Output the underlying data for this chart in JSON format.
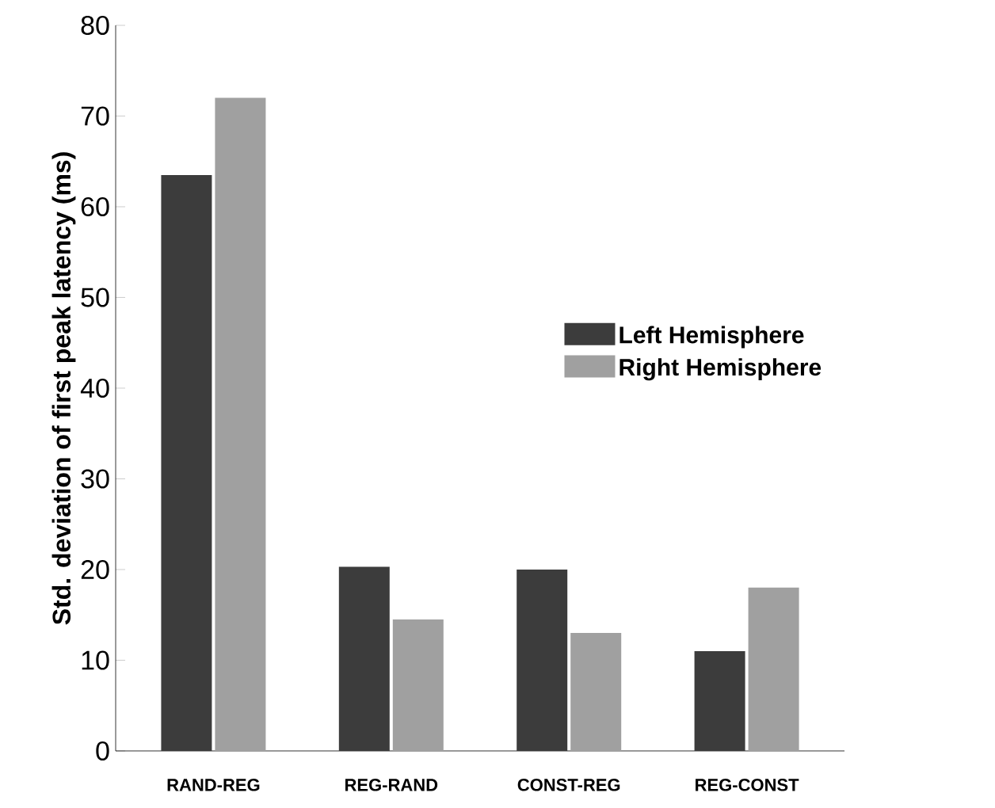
{
  "chart_data": {
    "type": "bar",
    "ylabel": "Std. deviation of first peak latency (ms)",
    "categories": [
      "RAND-REG",
      "REG-RAND",
      "CONST-REG",
      "REG-CONST"
    ],
    "series": [
      {
        "name": "Left Hemisphere",
        "color": "#3c3c3c",
        "values": [
          63.5,
          20.3,
          20,
          11
        ]
      },
      {
        "name": "Right Hemisphere",
        "color": "#a0a0a0",
        "values": [
          72,
          14.5,
          13,
          18
        ]
      }
    ],
    "ylim": [
      0,
      80
    ],
    "yticks": [
      0,
      10,
      20,
      30,
      40,
      50,
      60,
      70,
      80
    ],
    "grid": false,
    "legend": "right"
  }
}
